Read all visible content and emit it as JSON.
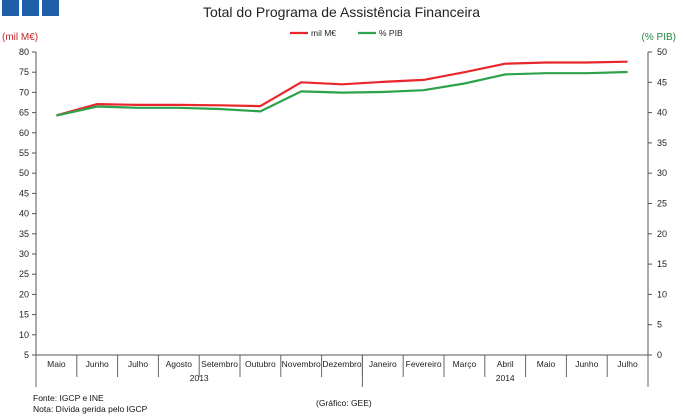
{
  "chart_data": {
    "type": "line",
    "title": "Total do Programa de Assistência Financeira",
    "ylabel_left": "(mil M€)",
    "ylabel_right": "(% PIB)",
    "ylim_left": [
      5,
      80
    ],
    "ylim_right": [
      0,
      50
    ],
    "yticks_left": [
      5,
      10,
      15,
      20,
      25,
      30,
      35,
      40,
      45,
      50,
      55,
      60,
      65,
      70,
      75,
      80
    ],
    "yticks_right": [
      0,
      5,
      10,
      15,
      20,
      25,
      30,
      35,
      40,
      45,
      50
    ],
    "categories": [
      "Maio",
      "Junho",
      "Julho",
      "Agosto",
      "Setembro",
      "Outubro",
      "Novembro",
      "Dezembro",
      "Janeiro",
      "Fevereiro",
      "Março",
      "Abril",
      "Maio",
      "Junho",
      "Julho"
    ],
    "year_groups": [
      {
        "label": "2013",
        "count": 8
      },
      {
        "label": "2014",
        "count": 7
      }
    ],
    "series": [
      {
        "name": "mil M€",
        "axis": "left",
        "color": "#e8262b",
        "values": [
          64.3,
          67.1,
          66.9,
          66.9,
          66.8,
          66.6,
          72.5,
          72.0,
          72.6,
          73.1,
          75.0,
          77.1,
          77.4,
          77.4,
          77.6
        ]
      },
      {
        "name": "% PIB",
        "axis": "right",
        "color": "#2ca24a",
        "values": [
          39.5,
          41.0,
          40.8,
          40.8,
          40.6,
          40.2,
          43.5,
          43.3,
          43.4,
          43.7,
          44.8,
          46.3,
          46.5,
          46.5,
          46.7
        ]
      }
    ],
    "legend_position": "top-center",
    "grid": false
  },
  "footer": {
    "source": "Fonte: IGCP e INE",
    "note": "Nota: Dívida gerida pelo IGCP",
    "credit": "(Gráfico: GEE)"
  }
}
